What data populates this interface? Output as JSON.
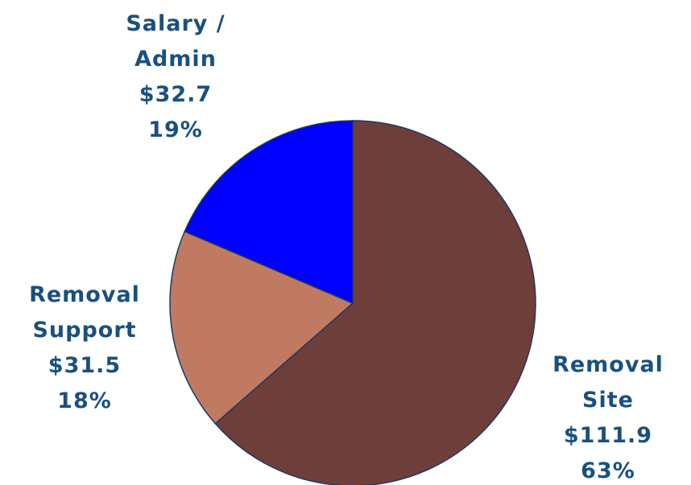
{
  "chart_data": {
    "type": "pie",
    "categories": [
      "Removal Site",
      "Removal Support",
      "Salary / Admin"
    ],
    "values": [
      111.9,
      31.5,
      32.7
    ],
    "value_labels": [
      "$111.9",
      "$31.5",
      "$32.7"
    ],
    "percents": [
      63,
      18,
      19
    ],
    "percent_labels": [
      "63%",
      "18%",
      "19%"
    ],
    "colors": [
      "#6e3f3a",
      "#c07a62",
      "#0000ff"
    ],
    "start_angle": 90,
    "direction": "clockwise"
  }
}
